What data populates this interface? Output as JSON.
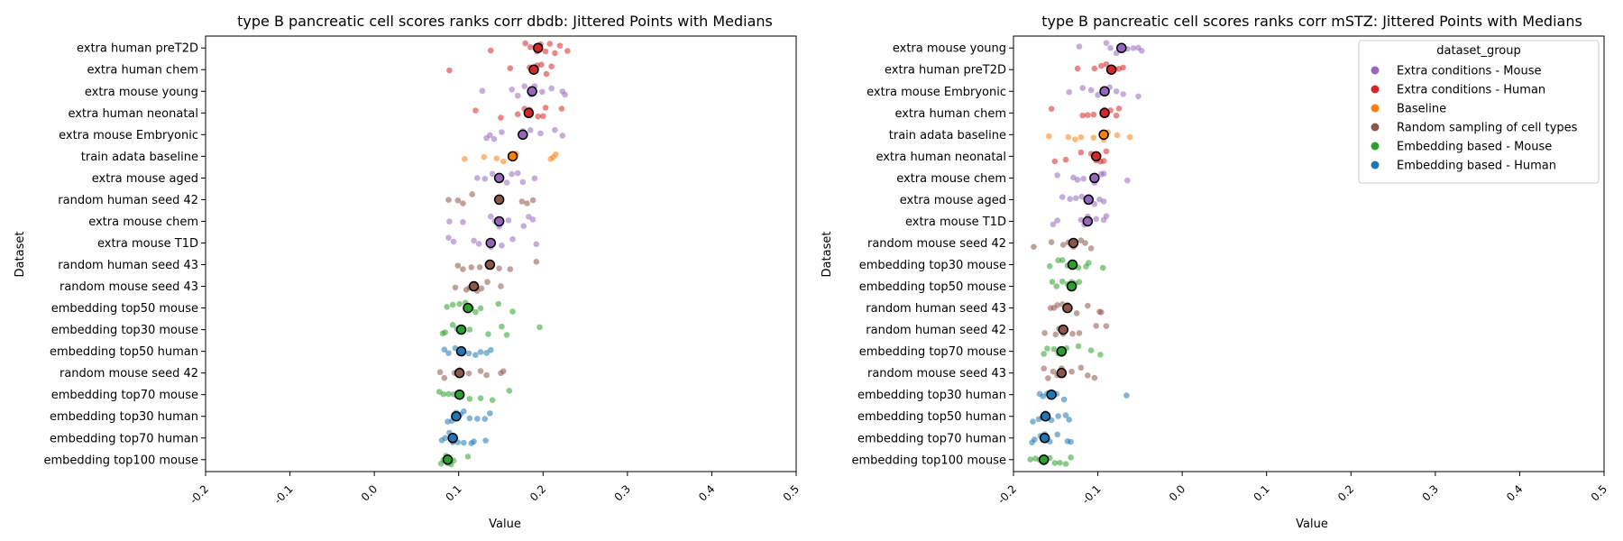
{
  "colors": {
    "Extra conditions - Mouse": "#9467bd",
    "Extra conditions - Human": "#d62728",
    "Baseline": "#ff7f0e",
    "Random sampling of cell types": "#8c564b",
    "Embedding based - Mouse": "#2ca02c",
    "Embedding based - Human": "#1f77b4"
  },
  "chart_data": [
    {
      "type": "scatter",
      "title": "type B pancreatic cell scores ranks corr dbdb: Jittered Points with Medians",
      "xlabel": "Value",
      "ylabel": "Dataset",
      "xlim": [
        -0.2,
        0.5
      ],
      "xticks": [
        "-0.2",
        "-0.1",
        "0.0",
        "0.1",
        "0.2",
        "0.3",
        "0.4",
        "0.5"
      ],
      "xtick_values": [
        -0.2,
        -0.1,
        0.0,
        0.1,
        0.2,
        0.3,
        0.4,
        0.5
      ],
      "grid": false,
      "rows": [
        {
          "label": "extra human preT2D",
          "group": "Extra conditions - Human",
          "median": 0.194,
          "points": [
            0.138,
            0.179,
            0.185,
            0.193,
            0.197,
            0.203,
            0.208,
            0.214,
            0.22,
            0.229
          ]
        },
        {
          "label": "extra human chem",
          "group": "Extra conditions - Human",
          "median": 0.189,
          "points": [
            0.089,
            0.161,
            0.184,
            0.188,
            0.193,
            0.198,
            0.204,
            0.21
          ]
        },
        {
          "label": "extra mouse young",
          "group": "Extra conditions - Mouse",
          "median": 0.187,
          "points": [
            0.128,
            0.163,
            0.17,
            0.178,
            0.186,
            0.19,
            0.199,
            0.21,
            0.223,
            0.226
          ]
        },
        {
          "label": "extra human neonatal",
          "group": "Extra conditions - Human",
          "median": 0.183,
          "points": [
            0.12,
            0.15,
            0.17,
            0.178,
            0.184,
            0.194,
            0.2,
            0.203,
            0.222
          ]
        },
        {
          "label": "extra mouse Embryonic",
          "group": "Extra conditions - Mouse",
          "median": 0.176,
          "points": [
            0.133,
            0.137,
            0.142,
            0.151,
            0.176,
            0.185,
            0.197,
            0.214,
            0.223
          ]
        },
        {
          "label": "train adata baseline",
          "group": "Baseline",
          "median": 0.164,
          "points": [
            0.107,
            0.13,
            0.145,
            0.153,
            0.164,
            0.168,
            0.209,
            0.212,
            0.215
          ]
        },
        {
          "label": "extra mouse aged",
          "group": "Extra conditions - Mouse",
          "median": 0.148,
          "points": [
            0.122,
            0.131,
            0.14,
            0.148,
            0.157,
            0.163,
            0.17,
            0.176,
            0.19
          ]
        },
        {
          "label": "random human seed 42",
          "group": "Random sampling of cell types",
          "median": 0.148,
          "points": [
            0.088,
            0.099,
            0.105,
            0.116,
            0.148,
            0.175,
            0.181,
            0.188
          ]
        },
        {
          "label": "extra mouse chem",
          "group": "Extra conditions - Mouse",
          "median": 0.148,
          "points": [
            0.089,
            0.105,
            0.138,
            0.143,
            0.148,
            0.159,
            0.177,
            0.183,
            0.188
          ]
        },
        {
          "label": "extra mouse T1D",
          "group": "Extra conditions - Mouse",
          "median": 0.138,
          "points": [
            0.088,
            0.094,
            0.118,
            0.124,
            0.138,
            0.151,
            0.164,
            0.192
          ]
        },
        {
          "label": "random human seed 43",
          "group": "Random sampling of cell types",
          "median": 0.137,
          "points": [
            0.099,
            0.105,
            0.115,
            0.125,
            0.137,
            0.148,
            0.161,
            0.192
          ]
        },
        {
          "label": "random mouse seed 43",
          "group": "Random sampling of cell types",
          "median": 0.118,
          "points": [
            0.096,
            0.109,
            0.113,
            0.118,
            0.122,
            0.127,
            0.134,
            0.15
          ]
        },
        {
          "label": "embedding top50 mouse",
          "group": "Embedding based - Mouse",
          "median": 0.111,
          "points": [
            0.086,
            0.093,
            0.101,
            0.108,
            0.115,
            0.12,
            0.126,
            0.147,
            0.164
          ]
        },
        {
          "label": "embedding top30 mouse",
          "group": "Embedding based - Mouse",
          "median": 0.103,
          "points": [
            0.081,
            0.084,
            0.093,
            0.098,
            0.103,
            0.113,
            0.135,
            0.151,
            0.157,
            0.196
          ]
        },
        {
          "label": "embedding top50 human",
          "group": "Embedding based - Human",
          "median": 0.103,
          "points": [
            0.083,
            0.088,
            0.096,
            0.103,
            0.112,
            0.12,
            0.126,
            0.133,
            0.138
          ]
        },
        {
          "label": "random mouse seed 42",
          "group": "Random sampling of cell types",
          "median": 0.101,
          "points": [
            0.078,
            0.083,
            0.095,
            0.101,
            0.112,
            0.126,
            0.133,
            0.15,
            0.153
          ]
        },
        {
          "label": "embedding top70 mouse",
          "group": "Embedding based - Mouse",
          "median": 0.101,
          "points": [
            0.077,
            0.082,
            0.088,
            0.094,
            0.101,
            0.113,
            0.126,
            0.14,
            0.16
          ]
        },
        {
          "label": "embedding top30 human",
          "group": "Embedding based - Human",
          "median": 0.097,
          "points": [
            0.087,
            0.092,
            0.097,
            0.102,
            0.106,
            0.113,
            0.122,
            0.131,
            0.137
          ]
        },
        {
          "label": "embedding top70 human",
          "group": "Embedding based - Human",
          "median": 0.093,
          "points": [
            0.08,
            0.084,
            0.089,
            0.093,
            0.099,
            0.106,
            0.115,
            0.118,
            0.132
          ]
        },
        {
          "label": "embedding top100 mouse",
          "group": "Embedding based - Mouse",
          "median": 0.087,
          "points": [
            0.079,
            0.082,
            0.085,
            0.087,
            0.091,
            0.094,
            0.111
          ]
        }
      ]
    },
    {
      "type": "scatter",
      "title": "type B pancreatic cell scores ranks corr mSTZ: Jittered Points with Medians",
      "xlabel": "Value",
      "ylabel": "Dataset",
      "xlim": [
        -0.2,
        0.5
      ],
      "xticks": [
        "-0.2",
        "-0.1",
        "0.0",
        "0.1",
        "0.2",
        "0.3",
        "0.4",
        "0.5"
      ],
      "xtick_values": [
        -0.2,
        -0.1,
        0.0,
        0.1,
        0.2,
        0.3,
        0.4,
        0.5
      ],
      "grid": false,
      "legend": {
        "title": "dataset_group",
        "position": "top-right",
        "entries": [
          "Extra conditions - Mouse",
          "Extra conditions - Human",
          "Baseline",
          "Random sampling of cell types",
          "Embedding based - Mouse",
          "Embedding based - Human"
        ]
      },
      "rows": [
        {
          "label": "extra mouse young",
          "group": "Extra conditions - Mouse",
          "median": -0.072,
          "points": [
            -0.122,
            -0.09,
            -0.085,
            -0.078,
            -0.072,
            -0.065,
            -0.058,
            -0.052,
            -0.048
          ]
        },
        {
          "label": "extra human preT2D",
          "group": "Extra conditions - Human",
          "median": -0.084,
          "points": [
            -0.124,
            -0.104,
            -0.096,
            -0.09,
            -0.084,
            -0.08,
            -0.075,
            -0.07
          ]
        },
        {
          "label": "extra mouse Embryonic",
          "group": "Extra conditions - Mouse",
          "median": -0.092,
          "points": [
            -0.134,
            -0.118,
            -0.108,
            -0.1,
            -0.092,
            -0.086,
            -0.078,
            -0.07,
            -0.052
          ]
        },
        {
          "label": "extra human chem",
          "group": "Extra conditions - Human",
          "median": -0.092,
          "points": [
            -0.155,
            -0.118,
            -0.112,
            -0.105,
            -0.092,
            -0.085,
            -0.078,
            -0.075
          ]
        },
        {
          "label": "train adata baseline",
          "group": "Baseline",
          "median": -0.093,
          "points": [
            -0.158,
            -0.135,
            -0.127,
            -0.12,
            -0.105,
            -0.093,
            -0.088,
            -0.077,
            -0.062
          ]
        },
        {
          "label": "extra human neonatal",
          "group": "Extra conditions - Human",
          "median": -0.102,
          "points": [
            -0.151,
            -0.138,
            -0.12,
            -0.108,
            -0.102,
            -0.097,
            -0.093,
            -0.09
          ]
        },
        {
          "label": "extra mouse chem",
          "group": "Extra conditions - Mouse",
          "median": -0.104,
          "points": [
            -0.148,
            -0.129,
            -0.124,
            -0.117,
            -0.104,
            -0.096,
            -0.093,
            -0.065
          ]
        },
        {
          "label": "extra mouse aged",
          "group": "Extra conditions - Mouse",
          "median": -0.111,
          "points": [
            -0.142,
            -0.133,
            -0.126,
            -0.119,
            -0.111,
            -0.104,
            -0.098,
            -0.093
          ]
        },
        {
          "label": "extra mouse T1D",
          "group": "Extra conditions - Mouse",
          "median": -0.112,
          "points": [
            -0.153,
            -0.148,
            -0.12,
            -0.116,
            -0.112,
            -0.102,
            -0.093,
            -0.09
          ]
        },
        {
          "label": "random mouse seed 42",
          "group": "Random sampling of cell types",
          "median": -0.129,
          "points": [
            -0.176,
            -0.155,
            -0.141,
            -0.135,
            -0.129,
            -0.12,
            -0.115,
            -0.108
          ]
        },
        {
          "label": "embedding top30 mouse",
          "group": "Embedding based - Mouse",
          "median": -0.13,
          "points": [
            -0.157,
            -0.147,
            -0.142,
            -0.136,
            -0.13,
            -0.123,
            -0.114,
            -0.111,
            -0.094
          ]
        },
        {
          "label": "embedding top50 mouse",
          "group": "Embedding based - Mouse",
          "median": -0.131,
          "points": [
            -0.154,
            -0.149,
            -0.142,
            -0.136,
            -0.131,
            -0.127,
            -0.122
          ]
        },
        {
          "label": "random human seed 43",
          "group": "Random sampling of cell types",
          "median": -0.136,
          "points": [
            -0.156,
            -0.152,
            -0.148,
            -0.142,
            -0.136,
            -0.125,
            -0.112,
            -0.098,
            -0.096
          ]
        },
        {
          "label": "random human seed 42",
          "group": "Random sampling of cell types",
          "median": -0.141,
          "points": [
            -0.163,
            -0.15,
            -0.146,
            -0.141,
            -0.13,
            -0.122,
            -0.102,
            -0.09
          ]
        },
        {
          "label": "embedding top70 mouse",
          "group": "Embedding based - Mouse",
          "median": -0.143,
          "points": [
            -0.164,
            -0.16,
            -0.152,
            -0.147,
            -0.143,
            -0.137,
            -0.123,
            -0.108,
            -0.097
          ]
        },
        {
          "label": "random mouse seed 43",
          "group": "Random sampling of cell types",
          "median": -0.143,
          "points": [
            -0.164,
            -0.159,
            -0.153,
            -0.148,
            -0.143,
            -0.131,
            -0.12,
            -0.112,
            -0.104
          ]
        },
        {
          "label": "embedding top30 human",
          "group": "Embedding based - Human",
          "median": -0.155,
          "points": [
            -0.169,
            -0.165,
            -0.16,
            -0.155,
            -0.149,
            -0.14,
            -0.066
          ]
        },
        {
          "label": "embedding top50 human",
          "group": "Embedding based - Human",
          "median": -0.162,
          "points": [
            -0.177,
            -0.17,
            -0.166,
            -0.162,
            -0.155,
            -0.147,
            -0.138,
            -0.134
          ]
        },
        {
          "label": "embedding top70 human",
          "group": "Embedding based - Human",
          "median": -0.163,
          "points": [
            -0.178,
            -0.175,
            -0.168,
            -0.163,
            -0.157,
            -0.148,
            -0.136,
            -0.132
          ]
        },
        {
          "label": "embedding top100 mouse",
          "group": "Embedding based - Mouse",
          "median": -0.164,
          "points": [
            -0.18,
            -0.174,
            -0.169,
            -0.164,
            -0.157,
            -0.151,
            -0.145,
            -0.138,
            -0.132
          ]
        }
      ]
    }
  ]
}
